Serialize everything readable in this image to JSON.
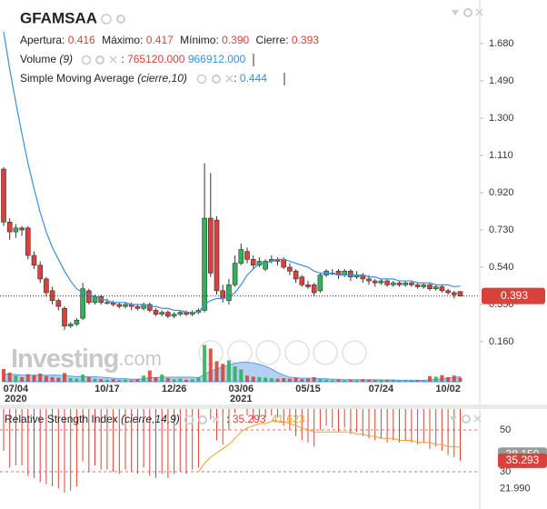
{
  "header": {
    "title": "GFAMSAA",
    "ohlc": [
      {
        "label": "Apertura:",
        "value": "0.416"
      },
      {
        "label": "Máximo:",
        "value": "0.417"
      },
      {
        "label": "Mínimo:",
        "value": "0.390"
      },
      {
        "label": "Cierre:",
        "value": "0.393"
      }
    ],
    "volume": {
      "name": "Volume",
      "params": "(9)",
      "sep": ":",
      "value": "765120.000",
      "ma_value": "966912.000"
    },
    "sma": {
      "name": "Simple Moving Average",
      "params": "(cierre,10)",
      "sep": ":",
      "value": "0.444"
    },
    "rsi": {
      "name": "Relative Strength Index",
      "params": "(cierre,14,9)",
      "sep": ":",
      "value": "35.293",
      "signal_value": "41.623"
    }
  },
  "chart_data": [
    {
      "type": "candlestick",
      "ylim": [
        -0.044,
        1.902
      ],
      "yticks": [
        {
          "value": 1.68,
          "label": "1.680"
        },
        {
          "value": 1.49,
          "label": "1.490"
        },
        {
          "value": 1.3,
          "label": "1.300"
        },
        {
          "value": 1.11,
          "label": "1.110"
        },
        {
          "value": 0.92,
          "label": "0.920"
        },
        {
          "value": 0.73,
          "label": "0.730"
        },
        {
          "value": 0.54,
          "label": "0.540"
        },
        {
          "value": 0.35,
          "label": "0.350"
        },
        {
          "value": 0.16,
          "label": "0.160"
        }
      ],
      "xticks": [
        {
          "value": 2,
          "label": "07/04"
        },
        {
          "value": 17,
          "label": "10/17"
        },
        {
          "value": 28,
          "label": "12/26"
        },
        {
          "value": 39,
          "label": "03/06"
        },
        {
          "value": 50,
          "label": "05/15"
        },
        {
          "value": 62,
          "label": "07/24"
        },
        {
          "value": 73,
          "label": "10/02"
        }
      ],
      "year_ticks": [
        {
          "value": 2,
          "label": "2020"
        },
        {
          "value": 39,
          "label": "2021"
        }
      ],
      "up_color": "#2eb35a",
      "down_color": "#d9423a",
      "open": [
        1.04,
        0.77,
        0.72,
        0.74,
        0.74,
        0.6,
        0.55,
        0.48,
        0.42,
        0.37,
        0.33,
        0.24,
        0.25,
        0.28,
        0.42,
        0.36,
        0.39,
        0.36,
        0.36,
        0.35,
        0.34,
        0.35,
        0.34,
        0.33,
        0.35,
        0.32,
        0.3,
        0.31,
        0.29,
        0.3,
        0.31,
        0.3,
        0.31,
        0.32,
        0.79,
        0.78,
        0.42,
        0.37,
        0.45,
        0.56,
        0.62,
        0.58,
        0.55,
        0.53,
        0.57,
        0.58,
        0.58,
        0.54,
        0.52,
        0.49,
        0.45,
        0.45,
        0.42,
        0.5,
        0.51,
        0.52,
        0.5,
        0.52,
        0.49,
        0.5,
        0.48,
        0.47,
        0.46,
        0.47,
        0.45,
        0.46,
        0.45,
        0.46,
        0.45,
        0.44,
        0.45,
        0.43,
        0.44,
        0.42,
        0.41,
        0.416
      ],
      "high": [
        1.05,
        0.79,
        0.76,
        0.75,
        0.75,
        0.62,
        0.57,
        0.49,
        0.44,
        0.38,
        0.34,
        0.26,
        0.28,
        0.46,
        0.43,
        0.4,
        0.4,
        0.38,
        0.37,
        0.36,
        0.36,
        0.36,
        0.35,
        0.36,
        0.36,
        0.33,
        0.32,
        0.32,
        0.31,
        0.32,
        0.32,
        0.32,
        0.33,
        1.07,
        1.02,
        0.8,
        0.45,
        0.48,
        0.6,
        0.66,
        0.64,
        0.6,
        0.59,
        0.58,
        0.6,
        0.59,
        0.59,
        0.56,
        0.53,
        0.5,
        0.47,
        0.46,
        0.51,
        0.53,
        0.53,
        0.53,
        0.53,
        0.53,
        0.52,
        0.51,
        0.5,
        0.48,
        0.48,
        0.48,
        0.47,
        0.47,
        0.47,
        0.47,
        0.46,
        0.46,
        0.46,
        0.45,
        0.45,
        0.43,
        0.42,
        0.417
      ],
      "low": [
        0.75,
        0.68,
        0.69,
        0.7,
        0.58,
        0.53,
        0.46,
        0.39,
        0.35,
        0.32,
        0.22,
        0.23,
        0.24,
        0.27,
        0.35,
        0.35,
        0.35,
        0.35,
        0.34,
        0.33,
        0.33,
        0.32,
        0.32,
        0.32,
        0.31,
        0.29,
        0.29,
        0.28,
        0.28,
        0.29,
        0.29,
        0.29,
        0.3,
        0.31,
        0.49,
        0.4,
        0.36,
        0.35,
        0.44,
        0.55,
        0.56,
        0.53,
        0.54,
        0.52,
        0.56,
        0.55,
        0.53,
        0.5,
        0.46,
        0.44,
        0.43,
        0.39,
        0.41,
        0.49,
        0.5,
        0.48,
        0.49,
        0.47,
        0.48,
        0.46,
        0.45,
        0.44,
        0.45,
        0.44,
        0.44,
        0.44,
        0.44,
        0.44,
        0.43,
        0.43,
        0.42,
        0.42,
        0.41,
        0.4,
        0.38,
        0.39
      ],
      "close": [
        0.77,
        0.72,
        0.74,
        0.73,
        0.6,
        0.55,
        0.48,
        0.41,
        0.37,
        0.34,
        0.24,
        0.25,
        0.27,
        0.43,
        0.36,
        0.39,
        0.36,
        0.36,
        0.35,
        0.34,
        0.35,
        0.34,
        0.33,
        0.35,
        0.32,
        0.3,
        0.31,
        0.29,
        0.3,
        0.31,
        0.3,
        0.31,
        0.32,
        0.79,
        0.51,
        0.42,
        0.38,
        0.45,
        0.56,
        0.63,
        0.58,
        0.55,
        0.57,
        0.57,
        0.58,
        0.57,
        0.54,
        0.52,
        0.48,
        0.45,
        0.44,
        0.41,
        0.5,
        0.52,
        0.51,
        0.5,
        0.52,
        0.49,
        0.5,
        0.48,
        0.47,
        0.46,
        0.47,
        0.45,
        0.46,
        0.45,
        0.46,
        0.45,
        0.44,
        0.45,
        0.43,
        0.44,
        0.42,
        0.41,
        0.4,
        0.393
      ],
      "sma": {
        "color": "#3b8fdb",
        "values": [
          1.74,
          1.55,
          1.38,
          1.22,
          1.07,
          0.94,
          0.82,
          0.72,
          0.64,
          0.58,
          0.52,
          0.47,
          0.43,
          0.41,
          0.4,
          0.39,
          0.38,
          0.37,
          0.36,
          0.36,
          0.36,
          0.35,
          0.35,
          0.35,
          0.34,
          0.34,
          0.33,
          0.33,
          0.32,
          0.32,
          0.31,
          0.31,
          0.31,
          0.35,
          0.37,
          0.38,
          0.38,
          0.39,
          0.41,
          0.45,
          0.5,
          0.53,
          0.56,
          0.56,
          0.57,
          0.58,
          0.58,
          0.57,
          0.56,
          0.55,
          0.54,
          0.52,
          0.51,
          0.51,
          0.51,
          0.5,
          0.5,
          0.5,
          0.5,
          0.5,
          0.49,
          0.49,
          0.48,
          0.48,
          0.48,
          0.47,
          0.47,
          0.47,
          0.46,
          0.46,
          0.46,
          0.45,
          0.45,
          0.45,
          0.44,
          0.444
        ]
      },
      "volume": {
        "ylim": [
          0,
          8000000
        ],
        "ma_color": "#5b9be0",
        "ma_fill": "#b3cff2",
        "values": [
          2500000,
          1800000,
          1200000,
          900000,
          1500000,
          1300000,
          1600000,
          1100000,
          900000,
          800000,
          1700000,
          700000,
          600000,
          1400000,
          900000,
          600000,
          500000,
          400000,
          500000,
          300000,
          400000,
          300000,
          500000,
          1200000,
          2200000,
          900000,
          1400000,
          700000,
          500000,
          600000,
          400000,
          500000,
          800000,
          7200000,
          6500000,
          4000000,
          3500000,
          4200000,
          3000000,
          2400000,
          1200000,
          1000000,
          900000,
          800000,
          700000,
          600000,
          700000,
          600000,
          800000,
          500000,
          600000,
          900000,
          500000,
          400000,
          300000,
          400000,
          300000,
          400000,
          300000,
          500000,
          400000,
          300000,
          400000,
          300000,
          300000,
          200000,
          300000,
          200000,
          300000,
          200000,
          1100000,
          1000000,
          1300000,
          900000,
          1200000,
          765120
        ],
        "ma_values": [
          1500000,
          1500000,
          1400000,
          1300000,
          1300000,
          1300000,
          1300000,
          1300000,
          1300000,
          1300000,
          1200000,
          1100000,
          1000000,
          1000000,
          1000000,
          1000000,
          900000,
          800000,
          700000,
          600000,
          600000,
          500000,
          500000,
          600000,
          800000,
          800000,
          900000,
          900000,
          900000,
          900000,
          900000,
          900000,
          800000,
          1400000,
          2100000,
          2500000,
          2900000,
          3300000,
          3600000,
          3800000,
          3800000,
          3700000,
          3400000,
          3000000,
          2500000,
          1800000,
          1300000,
          900000,
          800000,
          700000,
          700000,
          700000,
          600000,
          600000,
          500000,
          500000,
          400000,
          400000,
          400000,
          400000,
          400000,
          400000,
          350000,
          350000,
          350000,
          300000,
          300000,
          300000,
          300000,
          280000,
          350000,
          450000,
          600000,
          700000,
          850000,
          966912
        ]
      },
      "last_price": {
        "value": 0.393,
        "label": "0.393"
      },
      "watermark": {
        "brand": "Investing",
        "suffix": ".com"
      }
    },
    {
      "type": "indicator",
      "ylim": [
        12.17,
        60
      ],
      "yticks": [
        50,
        30,
        {
          "value": 21.99,
          "label": "21.990"
        }
      ],
      "rsi": {
        "color": "#d9423a",
        "values": [
          40,
          32,
          33,
          33,
          28,
          27,
          25,
          24,
          23,
          22,
          20,
          21,
          23,
          35,
          30,
          33,
          31,
          31,
          30,
          29,
          31,
          30,
          29,
          32,
          28,
          27,
          29,
          27,
          29,
          30,
          29,
          31,
          32,
          70,
          55,
          45,
          43,
          50,
          58,
          62,
          57,
          54,
          56,
          56,
          57,
          56,
          52,
          50,
          47,
          45,
          44,
          42,
          50,
          52,
          51,
          49,
          51,
          48,
          49,
          47,
          46,
          45,
          46,
          44,
          45,
          44,
          45,
          44,
          43,
          44,
          41,
          42,
          40,
          38,
          37,
          35.293
        ]
      },
      "signal": {
        "color": "#f0a030",
        "values": [
          null,
          null,
          null,
          null,
          null,
          null,
          null,
          null,
          null,
          null,
          null,
          null,
          null,
          null,
          null,
          null,
          null,
          null,
          null,
          null,
          null,
          null,
          null,
          null,
          null,
          null,
          null,
          null,
          null,
          null,
          null,
          null,
          30,
          34,
          37,
          39,
          41,
          43,
          46,
          49,
          51,
          52,
          53,
          53,
          54,
          54,
          54,
          53,
          52,
          51,
          50,
          49,
          49,
          49,
          49,
          49,
          49,
          49,
          48,
          48,
          47,
          47,
          46,
          46,
          46,
          45,
          45,
          45,
          44,
          44,
          44,
          43,
          43,
          42,
          42,
          41.623
        ]
      },
      "markers": [
        {
          "value": 38.15,
          "label": "38.150",
          "color": "#9a9a9a"
        },
        {
          "value": 35.293,
          "label": "35.293",
          "color": "#d9423a"
        }
      ]
    }
  ]
}
